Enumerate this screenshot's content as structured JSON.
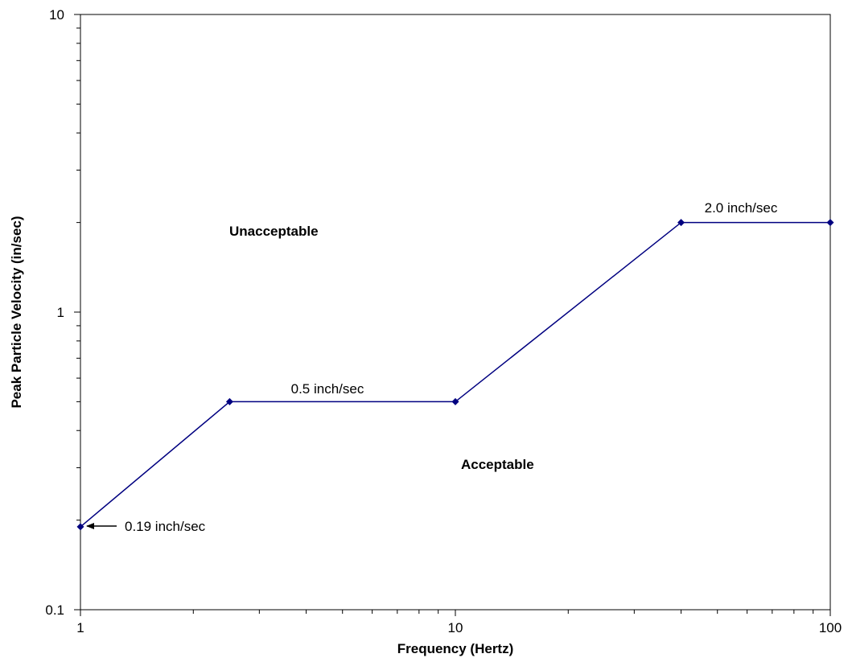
{
  "chart_data": {
    "type": "line",
    "title": "",
    "xlabel": "Frequency (Hertz)",
    "ylabel": "Peak Particle Velocity (in/sec)",
    "xscale": "log",
    "yscale": "log",
    "xlim": [
      1,
      100
    ],
    "ylim": [
      0.1,
      10
    ],
    "xticks": [
      "1",
      "10",
      "100"
    ],
    "yticks": [
      "0.1",
      "1",
      "10"
    ],
    "grid": false,
    "legend": "none",
    "series": [
      {
        "color": "#000080",
        "marker": "diamond",
        "x": [
          1,
          2.5,
          10,
          40,
          100
        ],
        "y": [
          0.19,
          0.5,
          0.5,
          2.0,
          2.0
        ]
      }
    ],
    "regions": {
      "upper": "Unacceptable",
      "lower": "Acceptable"
    },
    "annotations": [
      {
        "text": "0.19 inch/sec",
        "x": 1,
        "y": 0.19,
        "arrow": true
      },
      {
        "text": "0.5 inch/sec",
        "x": 5,
        "y": 0.5
      },
      {
        "text": "2.0 inch/sec",
        "x": 63,
        "y": 2.0
      }
    ]
  }
}
